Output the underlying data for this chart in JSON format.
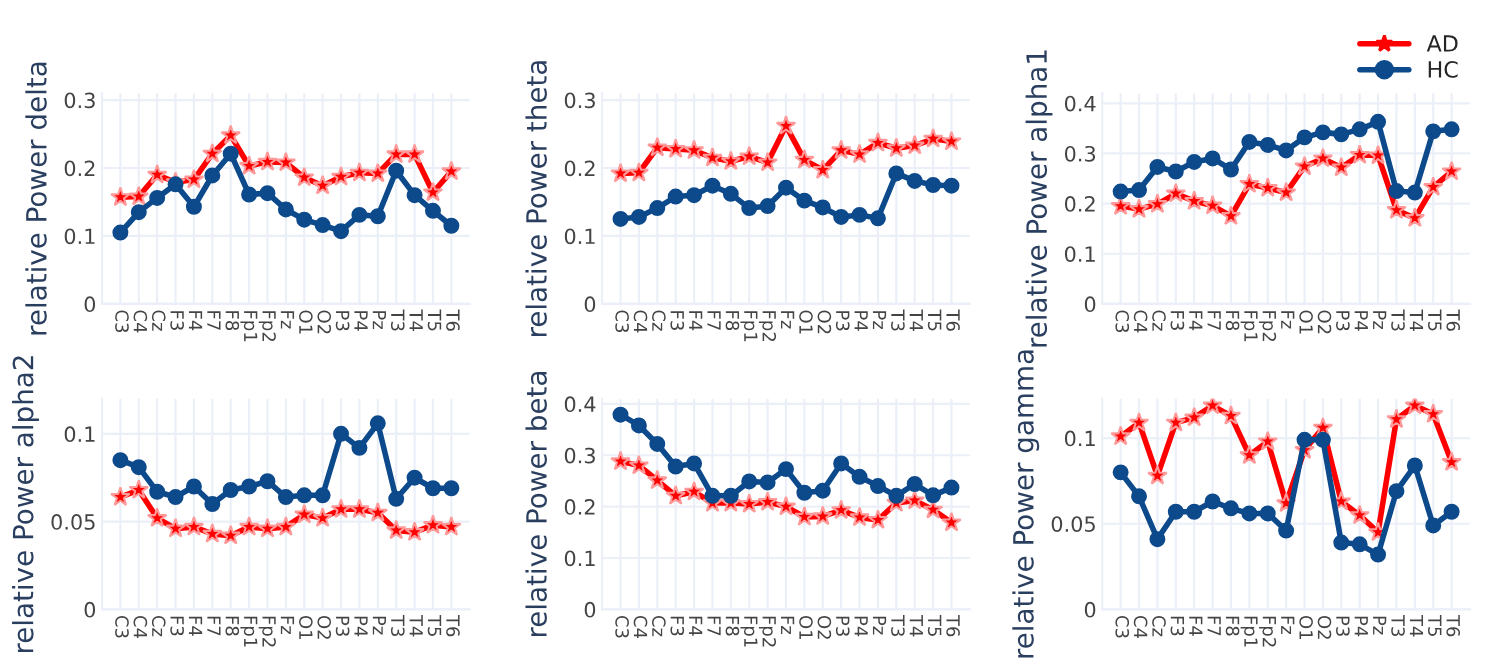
{
  "chart_data": [
    {
      "type": "line",
      "ylabel": "relative Power delta",
      "categories": [
        "C3",
        "C4",
        "Cz",
        "F3",
        "F4",
        "F7",
        "F8",
        "Fp1",
        "Fp2",
        "Fz",
        "O1",
        "O2",
        "P3",
        "P4",
        "Pz",
        "T3",
        "T4",
        "T5",
        "T6"
      ],
      "ylim": [
        0,
        0.31
      ],
      "yticks": [
        0,
        0.1,
        0.2,
        0.3
      ],
      "grid": true,
      "series": [
        {
          "color": "#ff0000",
          "marker": "star",
          "values": [
            0.157,
            0.158,
            0.19,
            0.179,
            0.183,
            0.221,
            0.248,
            0.203,
            0.209,
            0.208,
            0.186,
            0.174,
            0.187,
            0.193,
            0.192,
            0.22,
            0.22,
            0.164,
            0.195
          ]
        },
        {
          "color": "#0d4a8c",
          "marker": "circle",
          "values": [
            0.105,
            0.135,
            0.156,
            0.176,
            0.143,
            0.189,
            0.221,
            0.161,
            0.163,
            0.139,
            0.124,
            0.116,
            0.107,
            0.131,
            0.129,
            0.196,
            0.16,
            0.137,
            0.115
          ]
        }
      ]
    },
    {
      "type": "line",
      "ylabel": "relative Power theta",
      "categories": [
        "C3",
        "C4",
        "Cz",
        "F3",
        "F4",
        "F7",
        "F8",
        "Fp1",
        "Fp2",
        "Fz",
        "O1",
        "O2",
        "P3",
        "P4",
        "Pz",
        "T3",
        "T4",
        "T5",
        "T6"
      ],
      "ylim": [
        0,
        0.31
      ],
      "yticks": [
        0,
        0.1,
        0.2,
        0.3
      ],
      "grid": true,
      "series": [
        {
          "color": "#ff0000",
          "marker": "star",
          "values": [
            0.192,
            0.193,
            0.23,
            0.228,
            0.226,
            0.215,
            0.21,
            0.217,
            0.208,
            0.262,
            0.212,
            0.197,
            0.226,
            0.22,
            0.237,
            0.229,
            0.233,
            0.243,
            0.239
          ]
        },
        {
          "color": "#0d4a8c",
          "marker": "circle",
          "values": [
            0.125,
            0.128,
            0.141,
            0.158,
            0.16,
            0.174,
            0.162,
            0.141,
            0.144,
            0.171,
            0.152,
            0.142,
            0.128,
            0.131,
            0.126,
            0.192,
            0.181,
            0.175,
            0.174
          ]
        }
      ]
    },
    {
      "type": "line",
      "ylabel": "relative Power alpha1",
      "categories": [
        "C3",
        "C4",
        "Cz",
        "F3",
        "F4",
        "F7",
        "F8",
        "Fp1",
        "Fp2",
        "Fz",
        "O1",
        "O2",
        "P3",
        "P4",
        "Pz",
        "T3",
        "T4",
        "T5",
        "T6"
      ],
      "ylim": [
        0,
        0.42
      ],
      "yticks": [
        0,
        0.1,
        0.2,
        0.3,
        0.4
      ],
      "grid": true,
      "legend": "top right",
      "series": [
        {
          "name": "AD",
          "color": "#ff0000",
          "marker": "star",
          "values": [
            0.195,
            0.189,
            0.199,
            0.22,
            0.205,
            0.196,
            0.175,
            0.239,
            0.231,
            0.222,
            0.274,
            0.29,
            0.272,
            0.297,
            0.296,
            0.187,
            0.171,
            0.233,
            0.264
          ]
        },
        {
          "name": "HC",
          "color": "#0d4a8c",
          "marker": "circle",
          "values": [
            0.224,
            0.227,
            0.273,
            0.264,
            0.283,
            0.29,
            0.268,
            0.323,
            0.317,
            0.306,
            0.332,
            0.342,
            0.338,
            0.348,
            0.363,
            0.225,
            0.222,
            0.344,
            0.348
          ]
        }
      ]
    },
    {
      "type": "line",
      "ylabel": "relative Power alpha2",
      "categories": [
        "C3",
        "C4",
        "Cz",
        "F3",
        "F4",
        "F7",
        "F8",
        "Fp1",
        "Fp2",
        "Fz",
        "O1",
        "O2",
        "P3",
        "P4",
        "Pz",
        "T3",
        "T4",
        "T5",
        "T6"
      ],
      "ylim": [
        0,
        0.12
      ],
      "yticks": [
        0,
        0.05,
        0.1
      ],
      "grid": true,
      "series": [
        {
          "color": "#ff0000",
          "marker": "star",
          "values": [
            0.064,
            0.068,
            0.052,
            0.046,
            0.047,
            0.043,
            0.042,
            0.047,
            0.046,
            0.047,
            0.054,
            0.052,
            0.057,
            0.057,
            0.055,
            0.045,
            0.044,
            0.048,
            0.047
          ]
        },
        {
          "color": "#0d4a8c",
          "marker": "circle",
          "values": [
            0.085,
            0.081,
            0.067,
            0.064,
            0.07,
            0.06,
            0.068,
            0.07,
            0.073,
            0.064,
            0.065,
            0.065,
            0.1,
            0.092,
            0.106,
            0.063,
            0.075,
            0.069,
            0.069
          ]
        }
      ]
    },
    {
      "type": "line",
      "ylabel": "relative Power beta",
      "categories": [
        "C3",
        "C4",
        "Cz",
        "F3",
        "F4",
        "F7",
        "F8",
        "Fp1",
        "Fp2",
        "Fz",
        "O1",
        "O2",
        "P3",
        "P4",
        "Pz",
        "T3",
        "T4",
        "T5",
        "T6"
      ],
      "ylim": [
        0,
        0.41
      ],
      "yticks": [
        0,
        0.1,
        0.2,
        0.3,
        0.4
      ],
      "grid": true,
      "series": [
        {
          "color": "#ff0000",
          "marker": "star",
          "values": [
            0.288,
            0.28,
            0.251,
            0.221,
            0.229,
            0.207,
            0.207,
            0.205,
            0.209,
            0.2,
            0.18,
            0.181,
            0.193,
            0.179,
            0.174,
            0.207,
            0.212,
            0.194,
            0.169
          ]
        },
        {
          "color": "#0d4a8c",
          "marker": "circle",
          "values": [
            0.379,
            0.358,
            0.322,
            0.278,
            0.284,
            0.221,
            0.221,
            0.249,
            0.247,
            0.273,
            0.227,
            0.231,
            0.284,
            0.258,
            0.24,
            0.221,
            0.244,
            0.222,
            0.237
          ]
        }
      ]
    },
    {
      "type": "line",
      "ylabel": "relative Power gamma",
      "categories": [
        "C3",
        "C4",
        "Cz",
        "F3",
        "F4",
        "F7",
        "F8",
        "Fp1",
        "Fp2",
        "Fz",
        "O1",
        "O2",
        "P3",
        "P4",
        "Pz",
        "T3",
        "T4",
        "T5",
        "T6"
      ],
      "ylim": [
        0,
        0.123
      ],
      "yticks": [
        0,
        0.05,
        0.1
      ],
      "grid": true,
      "series": [
        {
          "color": "#ff0000",
          "marker": "star",
          "values": [
            0.101,
            0.109,
            0.078,
            0.109,
            0.112,
            0.119,
            0.113,
            0.09,
            0.098,
            0.062,
            0.093,
            0.106,
            0.063,
            0.055,
            0.045,
            0.111,
            0.119,
            0.114,
            0.086
          ]
        },
        {
          "color": "#0d4a8c",
          "marker": "circle",
          "values": [
            0.08,
            0.066,
            0.041,
            0.057,
            0.057,
            0.063,
            0.059,
            0.056,
            0.056,
            0.046,
            0.099,
            0.099,
            0.039,
            0.038,
            0.032,
            0.069,
            0.084,
            0.049,
            0.057
          ]
        }
      ]
    }
  ]
}
